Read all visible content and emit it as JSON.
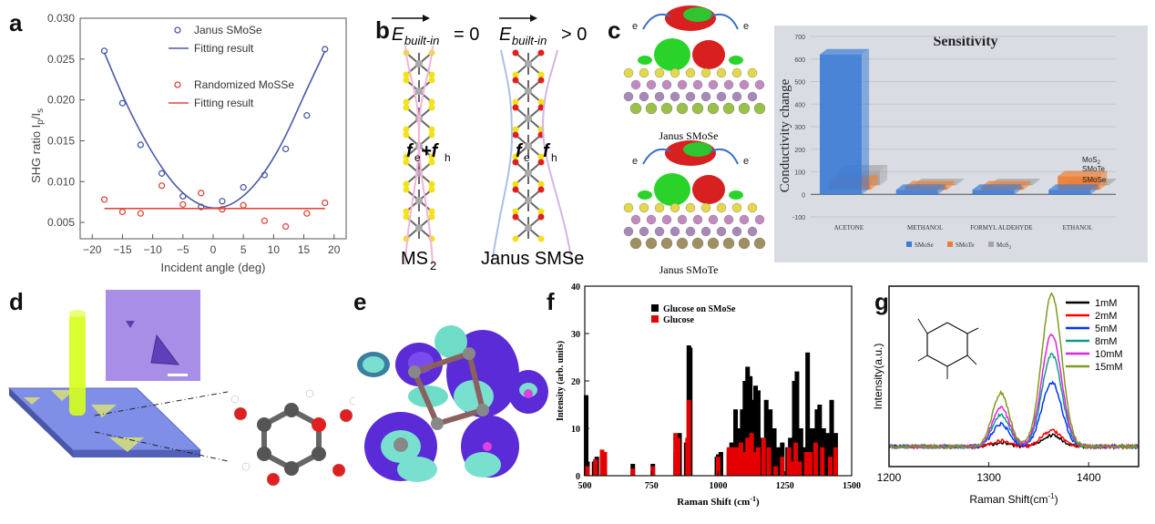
{
  "panels": {
    "a": {
      "label": "a"
    },
    "b": {
      "label": "b",
      "left_caption": "MS",
      "left_caption_sub": "2",
      "right_caption": "Janus SMSe",
      "left_formula": "= 0",
      "right_formula": "> 0",
      "E_symbol": "E",
      "E_sub": "built-in",
      "left_fsum": "f",
      "left_fe": "e",
      "left_plus": "+f",
      "left_fh": "h",
      "right_f1": "f",
      "right_fe": "e",
      "right_f2": "f",
      "right_fh": "h"
    },
    "c": {
      "label": "c",
      "struct_top_caption": "Janus SMoSe",
      "struct_bottom_caption": "Janus SMoTe",
      "e_label": "e"
    },
    "d": {
      "label": "d"
    },
    "e": {
      "label": "e"
    },
    "f": {
      "label": "f"
    },
    "g": {
      "label": "g"
    }
  },
  "colors": {
    "janus_blue": "#4a5aa6",
    "random_red": "#e2473b",
    "smose_blue": "#3d7cd6",
    "smote_orange": "#ee7d31",
    "mos2_gray": "#a5a5a5",
    "bar_black": "#000000",
    "bar_red": "#e50000",
    "g_1mM": "#000000",
    "g_2mM": "#ff0000",
    "g_5mM": "#0033ff",
    "g_8mM": "#119a8a",
    "g_10mM": "#dd22dd",
    "g_15mM": "#7f9a1e"
  },
  "chart_data": [
    {
      "id": "a",
      "type": "scatter",
      "title": "",
      "xlabel": "Incident angle (deg)",
      "ylabel": "SHG ratio I",
      "ylabel_sub_p": "p",
      "ylabel_mid": "/I",
      "ylabel_sub_s": "s",
      "xlim": [
        -22,
        22
      ],
      "ylim": [
        0.003,
        0.03
      ],
      "xticks": [
        "−20",
        "−15",
        "−10",
        "−5",
        "0",
        "5",
        "10",
        "15",
        "20"
      ],
      "xtick_values": [
        -20,
        -15,
        -10,
        -5,
        0,
        5,
        10,
        15,
        20
      ],
      "yticks": [
        "0.005",
        "0.010",
        "0.015",
        "0.020",
        "0.025",
        "0.030"
      ],
      "ytick_values": [
        0.005,
        0.01,
        0.015,
        0.02,
        0.025,
        0.03
      ],
      "legend": [
        "Janus SMoSe",
        "Fitting result",
        "Randomized MoSSe",
        "Fitting result"
      ],
      "legend_position": "top-right",
      "series": [
        {
          "name": "Janus SMoSe",
          "kind": "points",
          "x": [
            -18,
            -15,
            -12,
            -8.5,
            -5,
            -2,
            1.5,
            5,
            8.5,
            12,
            15.5,
            18.5
          ],
          "y": [
            0.026,
            0.0196,
            0.0145,
            0.011,
            0.0082,
            0.0069,
            0.0076,
            0.0093,
            0.0108,
            0.014,
            0.0181,
            0.0262
          ]
        },
        {
          "name": "Fitting result",
          "kind": "fit",
          "x": [
            -18,
            -15,
            -12,
            -9,
            -6,
            -3,
            0,
            3,
            6,
            9,
            12,
            15,
            18.5
          ],
          "y": [
            0.0258,
            0.0205,
            0.016,
            0.0122,
            0.0092,
            0.0074,
            0.0066,
            0.0071,
            0.0088,
            0.0116,
            0.0155,
            0.0205,
            0.026
          ]
        },
        {
          "name": "Randomized MoSSe",
          "kind": "points",
          "x": [
            -18,
            -15,
            -12,
            -8.5,
            -5,
            -2,
            1.5,
            5,
            8.5,
            12,
            15.5,
            18.5
          ],
          "y": [
            0.0078,
            0.0063,
            0.0061,
            0.0095,
            0.0072,
            0.0086,
            0.0066,
            0.0071,
            0.0052,
            0.0045,
            0.0061,
            0.0074
          ]
        },
        {
          "name": "Fitting result",
          "kind": "fit",
          "x": [
            -18,
            18.5
          ],
          "y": [
            0.0067,
            0.0067
          ]
        }
      ]
    },
    {
      "id": "c",
      "type": "bar",
      "title": "Sensitivity",
      "xlabel": "",
      "ylabel": "Conductivity change",
      "ylim": [
        -100,
        700
      ],
      "yticks": [
        "-100",
        "0",
        "100",
        "200",
        "300",
        "400",
        "500",
        "600",
        "700"
      ],
      "ytick_values": [
        -100,
        0,
        100,
        200,
        300,
        400,
        500,
        600,
        700
      ],
      "categories": [
        "ACETONE",
        "METHANOL",
        "FORMYL ALDEHYDE",
        "ETHANOL"
      ],
      "series": [
        {
          "name": "SMoSe",
          "values": [
            620,
            20,
            20,
            20
          ]
        },
        {
          "name": "SMoTe",
          "values": [
            40,
            15,
            15,
            60
          ]
        },
        {
          "name": "MoS",
          "name_sub": "2",
          "values": [
            65,
            5,
            5,
            5
          ]
        }
      ],
      "series_tags": [
        "MoS",
        "SMoTe",
        "SMoSe"
      ],
      "legend_position": "bottom"
    },
    {
      "id": "f",
      "type": "bar",
      "title": "",
      "xlabel": "Raman Shift (cm",
      "xlabel_sup": "-1",
      "xlabel_end": ")",
      "ylabel": "Intensity (arb. units)",
      "xlim": [
        500,
        1500
      ],
      "ylim": [
        0,
        40
      ],
      "xticks": [
        "500",
        "750",
        "1000",
        "1250",
        "1500"
      ],
      "xtick_values": [
        500,
        750,
        1000,
        1250,
        1500
      ],
      "yticks": [
        "0",
        "10",
        "20",
        "30",
        "40"
      ],
      "ytick_values": [
        0,
        10,
        20,
        30,
        40
      ],
      "legend": [
        "Glucose on SMoSe",
        "Glucose"
      ],
      "legend_position": "top-left",
      "series": [
        {
          "name": "Glucose on SMoSe",
          "x": [
            505,
            510,
            535,
            545,
            575,
            680,
            755,
            840,
            855,
            880,
            890,
            895,
            995,
            1000,
            1005,
            1010,
            1040,
            1050,
            1065,
            1080,
            1090,
            1100,
            1110,
            1120,
            1130,
            1140,
            1150,
            1165,
            1180,
            1195,
            1210,
            1225,
            1240,
            1260,
            1270,
            1285,
            1295,
            1310,
            1320,
            1335,
            1345,
            1360,
            1370,
            1380,
            1395,
            1410,
            1425,
            1440
          ],
          "y": [
            17,
            3,
            3,
            4,
            4,
            2.5,
            2.5,
            5,
            9,
            7,
            27.5,
            27,
            4,
            4.5,
            4.5,
            5,
            5,
            7,
            14,
            10,
            14,
            20,
            23,
            21,
            16,
            19,
            18,
            8,
            16,
            14,
            10,
            6,
            7,
            6,
            8,
            20,
            22,
            10,
            6,
            26,
            10,
            10,
            14,
            15,
            10,
            9,
            16,
            9
          ]
        },
        {
          "name": "Glucose",
          "x": [
            510,
            540,
            565,
            575,
            680,
            755,
            840,
            850,
            885,
            890,
            1000,
            1040,
            1055,
            1070,
            1085,
            1095,
            1110,
            1125,
            1135,
            1150,
            1170,
            1190,
            1215,
            1240,
            1265,
            1275,
            1290,
            1305,
            1330,
            1345,
            1365,
            1390,
            1420,
            1440
          ],
          "y": [
            2,
            3.5,
            5.5,
            5,
            1.5,
            2,
            9,
            8,
            8,
            16,
            4,
            6,
            6,
            6,
            7,
            5,
            8,
            9,
            5,
            6,
            8,
            6,
            2,
            4,
            6,
            3,
            7,
            3,
            5,
            5,
            7,
            6,
            4,
            6
          ]
        }
      ]
    },
    {
      "id": "g",
      "type": "line",
      "title": "",
      "xlabel": "Raman Shift(cm",
      "xlabel_sup": "-1",
      "xlabel_end": ")",
      "ylabel": "Intensity(a.u.)",
      "xlim": [
        1200,
        1450
      ],
      "xticks": [
        "1200",
        "1300",
        "1400"
      ],
      "xtick_values": [
        1200,
        1300,
        1400
      ],
      "legend_position": "top-right",
      "series": [
        {
          "name": "1mM",
          "peak": 0.55
        },
        {
          "name": "2mM",
          "peak": 0.8
        },
        {
          "name": "5mM",
          "peak": 3.2
        },
        {
          "name": "8mM",
          "peak": 4.6
        },
        {
          "name": "10mM",
          "peak": 5.6
        },
        {
          "name": "15mM",
          "peak": 7.6
        }
      ]
    }
  ]
}
